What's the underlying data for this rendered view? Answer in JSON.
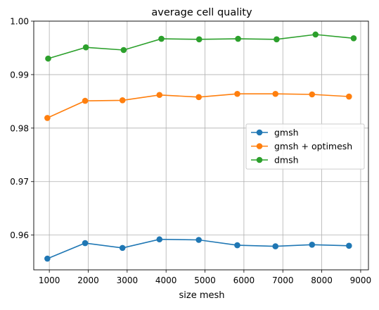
{
  "chart_data": {
    "type": "line",
    "title": "average cell quality",
    "xlabel": "size mesh",
    "ylabel": "",
    "xlim": [
      600,
      9200
    ],
    "ylim": [
      0.9535,
      1.0
    ],
    "xticks": [
      1000,
      2000,
      3000,
      4000,
      5000,
      6000,
      7000,
      8000,
      9000
    ],
    "yticks": [
      0.96,
      0.97,
      0.98,
      0.99,
      1.0
    ],
    "xtick_labels": [
      "1000",
      "2000",
      "3000",
      "4000",
      "5000",
      "6000",
      "7000",
      "8000",
      "9000"
    ],
    "ytick_labels": [
      "0.96",
      "0.97",
      "0.98",
      "0.99",
      "1.00"
    ],
    "grid": true,
    "legend_position": "center-right",
    "series": [
      {
        "name": "gmsh",
        "color": "#1f77b4",
        "x": [
          950,
          1920,
          2880,
          3830,
          4840,
          5830,
          6810,
          7750,
          8700
        ],
        "y": [
          0.9556,
          0.9585,
          0.9576,
          0.9592,
          0.9591,
          0.9581,
          0.9579,
          0.9582,
          0.958
        ]
      },
      {
        "name": "gmsh + optimesh",
        "color": "#ff7f0e",
        "x": [
          950,
          1920,
          2880,
          3830,
          4840,
          5830,
          6810,
          7750,
          8700
        ],
        "y": [
          0.9819,
          0.9851,
          0.9852,
          0.9862,
          0.9858,
          0.9864,
          0.9864,
          0.9863,
          0.9859
        ]
      },
      {
        "name": "dmsh",
        "color": "#2ca02c",
        "x": [
          970,
          1940,
          2910,
          3880,
          4850,
          5850,
          6840,
          7840,
          8820
        ],
        "y": [
          0.993,
          0.9951,
          0.9946,
          0.9967,
          0.9966,
          0.9967,
          0.9966,
          0.9975,
          0.9968
        ]
      }
    ]
  }
}
